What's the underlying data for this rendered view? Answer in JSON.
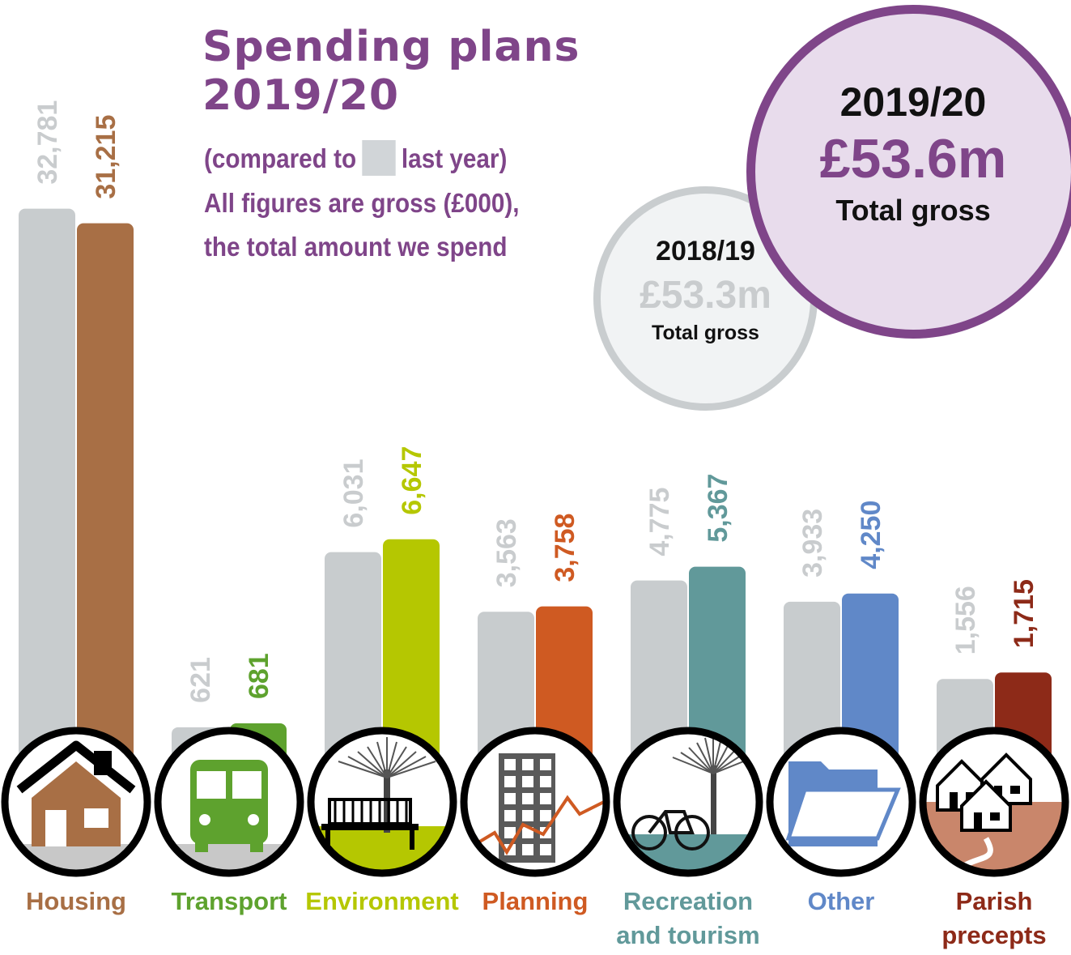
{
  "header": {
    "title_line1": "Spending plans",
    "title_line2": "2019/20",
    "compare_prefix": "(compared to",
    "compare_suffix": "last year)",
    "note_line1": "All figures are gross (£000),",
    "note_line2": "the total amount we spend"
  },
  "totals": {
    "previous": {
      "year": "2018/19",
      "amount": "£53.3m",
      "label": "Total gross"
    },
    "current": {
      "year": "2019/20",
      "amount": "£53.6m",
      "label": "Total gross"
    }
  },
  "colors": {
    "accent": "#7f4589",
    "previous_year_bar": "#c8ccce",
    "previous_year_text": "#c9ccce"
  },
  "chart_data": {
    "type": "bar",
    "title": "Spending plans 2019/20",
    "categories": [
      {
        "name": "Housing",
        "label_lines": [
          "Housing"
        ],
        "prev": 32781,
        "curr": 31215,
        "prev_label": "32,781",
        "curr_label": "31,215",
        "color": "#a86f45",
        "icon": "house-icon"
      },
      {
        "name": "Transport",
        "label_lines": [
          "Transport"
        ],
        "prev": 621,
        "curr": 681,
        "prev_label": "621",
        "curr_label": "681",
        "color": "#5ea22e",
        "icon": "bus-icon"
      },
      {
        "name": "Environment",
        "label_lines": [
          "Environment"
        ],
        "prev": 6031,
        "curr": 6647,
        "prev_label": "6,031",
        "curr_label": "6,647",
        "color": "#b5c701",
        "icon": "tree-bench-icon"
      },
      {
        "name": "Planning",
        "label_lines": [
          "Planning"
        ],
        "prev": 3563,
        "curr": 3758,
        "prev_label": "3,563",
        "curr_label": "3,758",
        "color": "#cf5a22",
        "icon": "building-graph-icon"
      },
      {
        "name": "Recreation and tourism",
        "label_lines": [
          "Recreation",
          "and tourism"
        ],
        "prev": 4775,
        "curr": 5367,
        "prev_label": "4,775",
        "curr_label": "5,367",
        "color": "#61999a",
        "icon": "bicycle-tree-icon"
      },
      {
        "name": "Other",
        "label_lines": [
          "Other"
        ],
        "prev": 3933,
        "curr": 4250,
        "prev_label": "3,933",
        "curr_label": "4,250",
        "color": "#6088c8",
        "icon": "folder-icon"
      },
      {
        "name": "Parish precepts",
        "label_lines": [
          "Parish",
          "precepts"
        ],
        "prev": 1556,
        "curr": 1715,
        "prev_label": "1,556",
        "curr_label": "1,715",
        "color": "#8d2a18",
        "icon": "houses-icon"
      }
    ],
    "series": [
      {
        "name": "2018/19",
        "values": [
          32781,
          621,
          6031,
          3563,
          4775,
          3933,
          1556
        ]
      },
      {
        "name": "2019/20",
        "values": [
          31215,
          681,
          6647,
          3758,
          5367,
          4250,
          1715
        ]
      }
    ],
    "units": "£000",
    "grid": false
  }
}
